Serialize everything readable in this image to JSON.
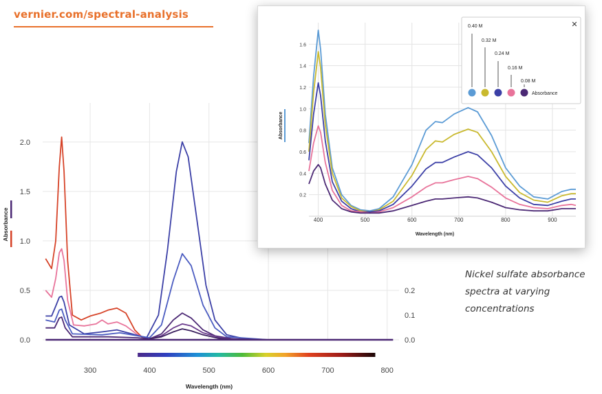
{
  "header": {
    "url": "vernier.com/spectral-analysis"
  },
  "caption": "Nickel sulfate absorbance spectra at varying concentrations",
  "colors": {
    "accent": "#e8702a"
  },
  "chart_data": [
    {
      "type": "line",
      "xlabel": "Wavelength (nm)",
      "ylabel": "Absorbance",
      "xlim": [
        220,
        820
      ],
      "ylim": [
        0,
        2.2
      ],
      "x_ticks": [
        "300",
        "400",
        "500",
        "600",
        "700",
        "800"
      ],
      "y_ticks": [
        "0.0",
        "0.5",
        "1.0",
        "1.5",
        "2.0"
      ],
      "y2_ticks": [
        "0.0",
        "0.1",
        "0.2"
      ],
      "grid": true,
      "color_bar": {
        "from_nm": 380,
        "to_nm": 780
      },
      "series": [
        {
          "color": "#d64227",
          "points": [
            [
              225,
              0.82
            ],
            [
              235,
              0.72
            ],
            [
              242,
              1.0
            ],
            [
              248,
              1.75
            ],
            [
              252,
              2.05
            ],
            [
              256,
              1.7
            ],
            [
              262,
              0.8
            ],
            [
              270,
              0.25
            ],
            [
              285,
              0.2
            ],
            [
              300,
              0.24
            ],
            [
              318,
              0.27
            ],
            [
              330,
              0.3
            ],
            [
              345,
              0.32
            ],
            [
              360,
              0.27
            ],
            [
              375,
              0.1
            ],
            [
              390,
              0.01
            ],
            [
              410,
              0.0
            ],
            [
              500,
              0.0
            ],
            [
              600,
              0.0
            ],
            [
              800,
              0.0
            ]
          ]
        },
        {
          "color": "#e8739a",
          "points": [
            [
              225,
              0.5
            ],
            [
              235,
              0.43
            ],
            [
              242,
              0.62
            ],
            [
              248,
              0.88
            ],
            [
              252,
              0.92
            ],
            [
              256,
              0.8
            ],
            [
              262,
              0.4
            ],
            [
              272,
              0.15
            ],
            [
              290,
              0.14
            ],
            [
              310,
              0.16
            ],
            [
              320,
              0.2
            ],
            [
              330,
              0.16
            ],
            [
              345,
              0.18
            ],
            [
              360,
              0.14
            ],
            [
              380,
              0.05
            ],
            [
              400,
              0.0
            ],
            [
              500,
              0.0
            ],
            [
              800,
              0.0
            ]
          ]
        },
        {
          "color": "#3b3fa6",
          "points": [
            [
              225,
              0.24
            ],
            [
              235,
              0.24
            ],
            [
              242,
              0.34
            ],
            [
              248,
              0.43
            ],
            [
              252,
              0.44
            ],
            [
              256,
              0.38
            ],
            [
              265,
              0.15
            ],
            [
              290,
              0.06
            ],
            [
              320,
              0.08
            ],
            [
              345,
              0.1
            ],
            [
              370,
              0.06
            ],
            [
              395,
              0.02
            ],
            [
              415,
              0.25
            ],
            [
              430,
              0.9
            ],
            [
              445,
              1.7
            ],
            [
              455,
              2.0
            ],
            [
              465,
              1.85
            ],
            [
              480,
              1.2
            ],
            [
              495,
              0.55
            ],
            [
              510,
              0.2
            ],
            [
              530,
              0.05
            ],
            [
              560,
              0.01
            ],
            [
              600,
              0.0
            ],
            [
              800,
              0.0
            ]
          ]
        },
        {
          "color": "#4a5bc0",
          "points": [
            [
              225,
              0.2
            ],
            [
              240,
              0.18
            ],
            [
              248,
              0.3
            ],
            [
              252,
              0.31
            ],
            [
              258,
              0.2
            ],
            [
              270,
              0.06
            ],
            [
              320,
              0.05
            ],
            [
              350,
              0.07
            ],
            [
              380,
              0.04
            ],
            [
              400,
              0.02
            ],
            [
              420,
              0.15
            ],
            [
              440,
              0.6
            ],
            [
              455,
              0.87
            ],
            [
              470,
              0.75
            ],
            [
              490,
              0.35
            ],
            [
              510,
              0.12
            ],
            [
              530,
              0.03
            ],
            [
              600,
              0.0
            ],
            [
              800,
              0.0
            ]
          ]
        },
        {
          "color": "#4b2874",
          "points": [
            [
              225,
              0.12
            ],
            [
              240,
              0.12
            ],
            [
              248,
              0.22
            ],
            [
              252,
              0.23
            ],
            [
              258,
              0.12
            ],
            [
              270,
              0.03
            ],
            [
              330,
              0.03
            ],
            [
              380,
              0.02
            ],
            [
              400,
              0.01
            ],
            [
              420,
              0.06
            ],
            [
              440,
              0.2
            ],
            [
              455,
              0.27
            ],
            [
              470,
              0.22
            ],
            [
              490,
              0.1
            ],
            [
              510,
              0.04
            ],
            [
              540,
              0.01
            ],
            [
              600,
              0.0
            ],
            [
              800,
              0.0
            ]
          ]
        },
        {
          "color": "#6a3a8c",
          "points": [
            [
              400,
              0.01
            ],
            [
              420,
              0.04
            ],
            [
              440,
              0.12
            ],
            [
              455,
              0.16
            ],
            [
              470,
              0.14
            ],
            [
              490,
              0.07
            ],
            [
              520,
              0.02
            ],
            [
              560,
              0.0
            ],
            [
              800,
              0.0
            ]
          ]
        },
        {
          "color": "#3a1f5e",
          "points": [
            [
              400,
              0.01
            ],
            [
              420,
              0.03
            ],
            [
              440,
              0.08
            ],
            [
              455,
              0.11
            ],
            [
              470,
              0.09
            ],
            [
              490,
              0.05
            ],
            [
              520,
              0.01
            ],
            [
              560,
              0.0
            ],
            [
              800,
              0.0
            ]
          ]
        }
      ]
    },
    {
      "type": "line",
      "xlabel": "Wavelength (nm)",
      "ylabel": "Absorbance",
      "xlim": [
        380,
        950
      ],
      "ylim": [
        0,
        1.8
      ],
      "x_ticks": [
        "400",
        "500",
        "600",
        "700",
        "800",
        "900"
      ],
      "y_ticks": [
        "0.2",
        "0.4",
        "0.6",
        "0.8",
        "1.0",
        "1.2",
        "1.4",
        "1.6"
      ],
      "grid": true,
      "legend": {
        "position": "top-right",
        "entries": [
          "0.40 M",
          "0.32 M",
          "0.24 M",
          "0.16 M",
          "0.08 M"
        ],
        "label": "Absorbance",
        "close": "✕"
      },
      "series": [
        {
          "name": "0.40 M",
          "color": "#5b9bd5",
          "points": [
            [
              380,
              0.68
            ],
            [
              390,
              1.3
            ],
            [
              400,
              1.73
            ],
            [
              405,
              1.55
            ],
            [
              415,
              0.95
            ],
            [
              430,
              0.45
            ],
            [
              450,
              0.2
            ],
            [
              470,
              0.1
            ],
            [
              490,
              0.06
            ],
            [
              510,
              0.05
            ],
            [
              530,
              0.07
            ],
            [
              560,
              0.18
            ],
            [
              600,
              0.48
            ],
            [
              630,
              0.8
            ],
            [
              650,
              0.88
            ],
            [
              665,
              0.87
            ],
            [
              690,
              0.95
            ],
            [
              720,
              1.01
            ],
            [
              740,
              0.97
            ],
            [
              770,
              0.75
            ],
            [
              800,
              0.45
            ],
            [
              830,
              0.28
            ],
            [
              860,
              0.18
            ],
            [
              890,
              0.16
            ],
            [
              920,
              0.23
            ],
            [
              940,
              0.25
            ],
            [
              950,
              0.25
            ]
          ]
        },
        {
          "name": "0.32 M",
          "color": "#c9b92e",
          "points": [
            [
              380,
              0.6
            ],
            [
              390,
              1.15
            ],
            [
              400,
              1.53
            ],
            [
              405,
              1.38
            ],
            [
              415,
              0.85
            ],
            [
              430,
              0.4
            ],
            [
              450,
              0.17
            ],
            [
              470,
              0.09
            ],
            [
              490,
              0.05
            ],
            [
              510,
              0.04
            ],
            [
              530,
              0.06
            ],
            [
              560,
              0.14
            ],
            [
              600,
              0.38
            ],
            [
              630,
              0.62
            ],
            [
              650,
              0.7
            ],
            [
              665,
              0.69
            ],
            [
              690,
              0.76
            ],
            [
              720,
              0.81
            ],
            [
              740,
              0.78
            ],
            [
              770,
              0.6
            ],
            [
              800,
              0.37
            ],
            [
              830,
              0.22
            ],
            [
              860,
              0.15
            ],
            [
              890,
              0.13
            ],
            [
              920,
              0.19
            ],
            [
              940,
              0.21
            ],
            [
              950,
              0.21
            ]
          ]
        },
        {
          "name": "0.24 M",
          "color": "#3b3fa6",
          "points": [
            [
              380,
              0.52
            ],
            [
              390,
              0.95
            ],
            [
              400,
              1.24
            ],
            [
              405,
              1.12
            ],
            [
              415,
              0.7
            ],
            [
              430,
              0.32
            ],
            [
              450,
              0.14
            ],
            [
              470,
              0.07
            ],
            [
              490,
              0.04
            ],
            [
              510,
              0.04
            ],
            [
              530,
              0.05
            ],
            [
              560,
              0.11
            ],
            [
              600,
              0.28
            ],
            [
              630,
              0.44
            ],
            [
              650,
              0.5
            ],
            [
              665,
              0.5
            ],
            [
              690,
              0.55
            ],
            [
              720,
              0.6
            ],
            [
              740,
              0.57
            ],
            [
              770,
              0.45
            ],
            [
              800,
              0.28
            ],
            [
              830,
              0.17
            ],
            [
              860,
              0.11
            ],
            [
              890,
              0.1
            ],
            [
              920,
              0.14
            ],
            [
              940,
              0.16
            ],
            [
              950,
              0.16
            ]
          ]
        },
        {
          "name": "0.16 M",
          "color": "#e8739a",
          "points": [
            [
              380,
              0.42
            ],
            [
              390,
              0.68
            ],
            [
              400,
              0.84
            ],
            [
              405,
              0.78
            ],
            [
              415,
              0.5
            ],
            [
              430,
              0.24
            ],
            [
              450,
              0.1
            ],
            [
              470,
              0.05
            ],
            [
              490,
              0.04
            ],
            [
              510,
              0.03
            ],
            [
              530,
              0.04
            ],
            [
              560,
              0.08
            ],
            [
              600,
              0.18
            ],
            [
              630,
              0.27
            ],
            [
              650,
              0.31
            ],
            [
              665,
              0.31
            ],
            [
              690,
              0.34
            ],
            [
              720,
              0.37
            ],
            [
              740,
              0.35
            ],
            [
              770,
              0.27
            ],
            [
              800,
              0.17
            ],
            [
              830,
              0.11
            ],
            [
              860,
              0.08
            ],
            [
              890,
              0.07
            ],
            [
              920,
              0.1
            ],
            [
              940,
              0.11
            ],
            [
              950,
              0.1
            ]
          ]
        },
        {
          "name": "0.08 M",
          "color": "#4b2874",
          "points": [
            [
              380,
              0.3
            ],
            [
              390,
              0.42
            ],
            [
              400,
              0.48
            ],
            [
              405,
              0.45
            ],
            [
              415,
              0.3
            ],
            [
              430,
              0.15
            ],
            [
              450,
              0.07
            ],
            [
              470,
              0.04
            ],
            [
              490,
              0.03
            ],
            [
              510,
              0.03
            ],
            [
              530,
              0.03
            ],
            [
              560,
              0.05
            ],
            [
              600,
              0.1
            ],
            [
              630,
              0.14
            ],
            [
              650,
              0.16
            ],
            [
              665,
              0.16
            ],
            [
              690,
              0.17
            ],
            [
              720,
              0.18
            ],
            [
              740,
              0.17
            ],
            [
              770,
              0.13
            ],
            [
              800,
              0.08
            ],
            [
              830,
              0.06
            ],
            [
              860,
              0.05
            ],
            [
              890,
              0.05
            ],
            [
              920,
              0.07
            ],
            [
              940,
              0.07
            ],
            [
              950,
              0.07
            ]
          ]
        }
      ]
    }
  ]
}
